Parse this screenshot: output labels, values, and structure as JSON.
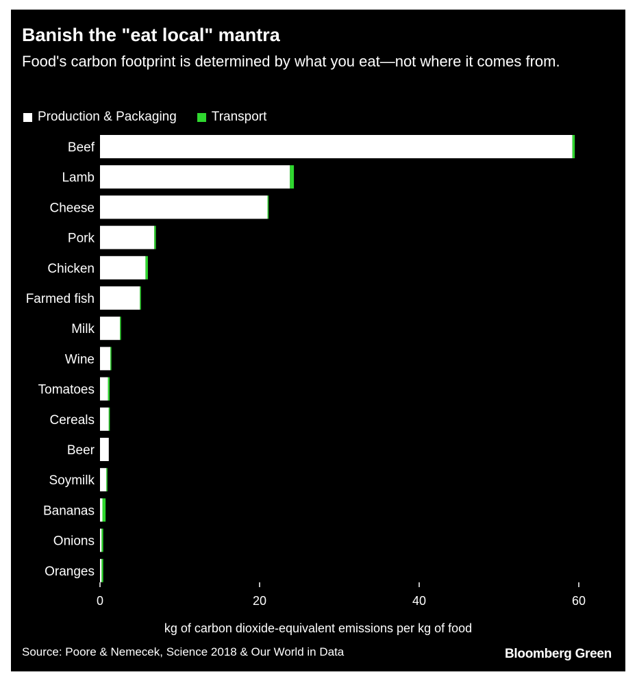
{
  "chart_data": {
    "type": "bar",
    "stacked": true,
    "orientation": "horizontal",
    "title": "Banish the \"eat local\" mantra",
    "subtitle": "Food's carbon footprint is determined by what you eat—not where it comes from.",
    "xlabel": "kg of carbon dioxide-equivalent emissions per kg of food",
    "ylabel": "",
    "xlim": [
      0,
      60
    ],
    "xticks": [
      0,
      20,
      40,
      60
    ],
    "legend_position": "top-left",
    "grid": false,
    "categories": [
      "Beef",
      "Lamb",
      "Cheese",
      "Pork",
      "Chicken",
      "Farmed fish",
      "Milk",
      "Wine",
      "Tomatoes",
      "Cereals",
      "Beer",
      "Soymilk",
      "Bananas",
      "Onions",
      "Oranges"
    ],
    "series": [
      {
        "name": "Production & Packaging",
        "color": "#ffffff",
        "values": [
          59.2,
          23.8,
          21.0,
          6.8,
          5.7,
          5.0,
          2.5,
          1.3,
          1.0,
          1.1,
          1.1,
          0.8,
          0.3,
          0.2,
          0.2
        ]
      },
      {
        "name": "Transport",
        "color": "#2fd72f",
        "values": [
          0.3,
          0.5,
          0.1,
          0.2,
          0.3,
          0.1,
          0.1,
          0.1,
          0.2,
          0.1,
          0.0,
          0.1,
          0.4,
          0.2,
          0.2
        ]
      }
    ]
  },
  "footer": {
    "source": "Source: Poore & Nemecek, Science 2018 & Our World in Data",
    "brand": "Bloomberg Green"
  }
}
